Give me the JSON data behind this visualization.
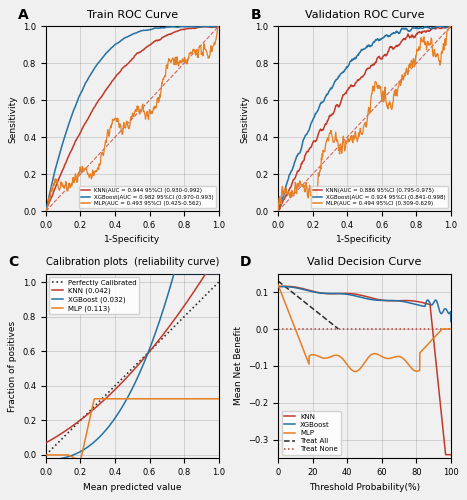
{
  "fig_width": 4.67,
  "fig_height": 5.0,
  "dpi": 100,
  "panel_titles": [
    "Train ROC Curve",
    "Validation ROC Curve",
    "Calibration plots  (reliability curve)",
    "Valid Decision Curve"
  ],
  "colors": {
    "KNN": "#C0392B",
    "XGBoost": "#2471A3",
    "MLP": "#E67E22",
    "diagonal": "#C0392B",
    "treat_all": "#2C2C2C",
    "treat_none": "#C0392B",
    "perfect_calib": "#333333"
  },
  "train_roc": {
    "KNN_auc": "0.944",
    "KNN_ci": "0.930-0.992",
    "XGB_auc": "0.982",
    "XGB_ci": "0.970-0.993",
    "MLP_auc": "0.493",
    "MLP_ci": "0.425-0.562"
  },
  "valid_roc": {
    "KNN_auc": "0.886",
    "KNN_ci": "0.795-0.975",
    "XGB_auc": "0.924",
    "XGB_ci": "0.841-0.998",
    "MLP_auc": "0.494",
    "MLP_ci": "0.309-0.629"
  },
  "calib_brier": {
    "KNN": "0.042",
    "XGBoost": "0.032",
    "MLP": "0.113"
  },
  "bg_color": "#F0F0F0"
}
